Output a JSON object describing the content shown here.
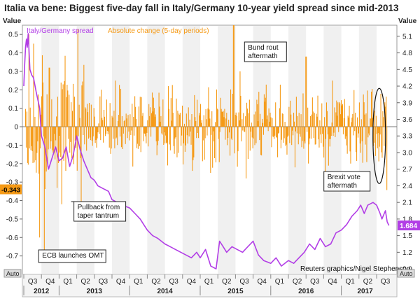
{
  "chart_data": {
    "type": "line",
    "title": "Italia va bene: Biggest five-day fall in Italy/Germany 10-year yield spread since mid-2013",
    "left_axis_label": "Value",
    "right_axis_label": "Value",
    "left_axis": {
      "min": -0.8,
      "max": 0.55,
      "ticks": [
        0.5,
        0.4,
        0.3,
        0.2,
        0.1,
        0,
        -0.1,
        -0.2,
        -0.3,
        -0.4,
        -0.5,
        -0.6,
        -0.7
      ]
    },
    "right_axis": {
      "min": 0.8,
      "max": 5.3,
      "ticks": [
        5.1,
        4.8,
        4.5,
        4.2,
        3.9,
        3.6,
        3.3,
        3.0,
        2.7,
        2.4,
        2.1,
        1.8,
        1.5,
        1.2,
        0.9
      ]
    },
    "x_quarters": [
      "Q3",
      "Q4",
      "Q1",
      "Q2",
      "Q3",
      "Q4",
      "Q1",
      "Q2",
      "Q3",
      "Q4",
      "Q1",
      "Q2",
      "Q3",
      "Q4",
      "Q1",
      "Q2",
      "Q3",
      "Q4",
      "Q1",
      "Q2",
      "Q3"
    ],
    "x_years": [
      {
        "label": "2012",
        "start_q": 0,
        "end_q": 2
      },
      {
        "label": "2013",
        "start_q": 2,
        "end_q": 6
      },
      {
        "label": "2014",
        "start_q": 6,
        "end_q": 10
      },
      {
        "label": "2015",
        "start_q": 10,
        "end_q": 14
      },
      {
        "label": "2016",
        "start_q": 14,
        "end_q": 18
      },
      {
        "label": "2017",
        "start_q": 18,
        "end_q": 20.7
      }
    ],
    "auto_label": "Auto",
    "legend": [
      {
        "name": "Italy/Germany spread",
        "color": "#b23ee6"
      },
      {
        "name": "Absolute change (5-day periods)",
        "color": "#f59a16"
      }
    ],
    "last_values": {
      "change": "-0.343",
      "spread": "1.684"
    },
    "annotations": [
      {
        "text": [
          "Bund rout",
          "aftermath"
        ],
        "q": 12.75,
        "value": 0.5
      },
      {
        "text": [
          "Brexit vote",
          "aftermath"
        ],
        "q": 17.25,
        "value": -0.25
      },
      {
        "text": [
          "Pullback from",
          "taper tantrum"
        ],
        "q": 3.0,
        "value": -0.5
      },
      {
        "text": [
          "ECB launches OMT"
        ],
        "q": 1.0,
        "value": -0.73
      }
    ],
    "credit": "Reuters graphics/Nigel Stephenson",
    "spread_series": {
      "name": "Italy/Germany spread",
      "q": [
        0,
        0.05,
        0.1,
        0.15,
        0.2,
        0.25,
        0.3,
        0.35,
        0.45,
        0.55,
        0.7,
        0.9,
        1.0,
        1.2,
        1.4,
        1.6,
        1.8,
        2.0,
        2.2,
        2.4,
        2.6,
        2.8,
        3.0,
        3.2,
        3.4,
        3.6,
        3.8,
        4.0,
        4.2,
        4.5,
        4.8,
        5.0,
        5.3,
        5.6,
        6.0,
        6.3,
        6.6,
        7.0,
        7.3,
        7.6,
        8.0,
        8.3,
        8.6,
        8.9,
        9.2,
        9.5,
        9.8,
        10.0,
        10.3,
        10.6,
        10.9,
        11.1,
        11.3,
        11.5,
        11.8,
        12.1,
        12.4,
        12.7,
        13.0,
        13.3,
        13.6,
        14.0,
        14.3,
        14.6,
        15.0,
        15.3,
        15.6,
        15.9,
        16.2,
        16.5,
        16.8,
        17.1,
        17.4,
        17.7,
        18.0,
        18.3,
        18.6,
        18.9,
        19.1,
        19.3,
        19.5,
        19.8,
        20.0,
        20.2,
        20.3,
        20.5,
        20.6,
        20.7
      ],
      "values": [
        4.2,
        4.6,
        4.9,
        5.05,
        4.9,
        5.15,
        4.8,
        4.5,
        4.4,
        4.35,
        4.1,
        3.8,
        3.3,
        3.1,
        2.7,
        2.9,
        3.1,
        2.85,
        2.9,
        3.1,
        2.75,
        2.95,
        3.3,
        3.05,
        2.85,
        2.7,
        2.55,
        2.5,
        2.4,
        2.35,
        2.3,
        2.15,
        2.1,
        2.05,
        2.0,
        1.9,
        1.8,
        1.6,
        1.5,
        1.45,
        1.35,
        1.3,
        1.25,
        1.2,
        1.15,
        1.1,
        1.2,
        1.1,
        1.25,
        0.95,
        0.9,
        1.4,
        1.3,
        1.2,
        1.3,
        1.25,
        1.2,
        1.3,
        1.4,
        1.15,
        1.05,
        1.0,
        1.1,
        0.95,
        1.05,
        1.0,
        1.1,
        1.2,
        1.35,
        1.25,
        1.45,
        1.3,
        1.35,
        1.55,
        1.6,
        1.7,
        1.85,
        1.95,
        2.05,
        1.9,
        2.05,
        2.1,
        2.05,
        1.9,
        1.8,
        1.95,
        1.75,
        1.684
      ]
    },
    "change_series": {
      "name": "Absolute change (5-day periods)",
      "generator": "weekly-bars",
      "q_start": 0.1,
      "q_end": 20.62,
      "base_amplitude": 0.14,
      "peaks": [
        {
          "q": 0.3,
          "value": 0.5
        },
        {
          "q": 0.55,
          "value": 0.45
        },
        {
          "q": 0.9,
          "value": -0.6
        },
        {
          "q": 1.15,
          "value": -0.73
        },
        {
          "q": 1.45,
          "value": 0.32
        },
        {
          "q": 2.15,
          "value": -0.42
        },
        {
          "q": 3.05,
          "value": 0.53
        },
        {
          "q": 3.25,
          "value": -0.43
        },
        {
          "q": 5.2,
          "value": 0.25
        },
        {
          "q": 8.2,
          "value": 0.22
        },
        {
          "q": 10.6,
          "value": -0.25
        },
        {
          "q": 11.9,
          "value": 0.55
        },
        {
          "q": 12.25,
          "value": 0.3
        },
        {
          "q": 12.6,
          "value": -0.28
        },
        {
          "q": 16.0,
          "value": 0.38
        },
        {
          "q": 17.1,
          "value": -0.35
        },
        {
          "q": 17.5,
          "value": 0.25
        },
        {
          "q": 20.6,
          "value": -0.343
        }
      ]
    }
  }
}
